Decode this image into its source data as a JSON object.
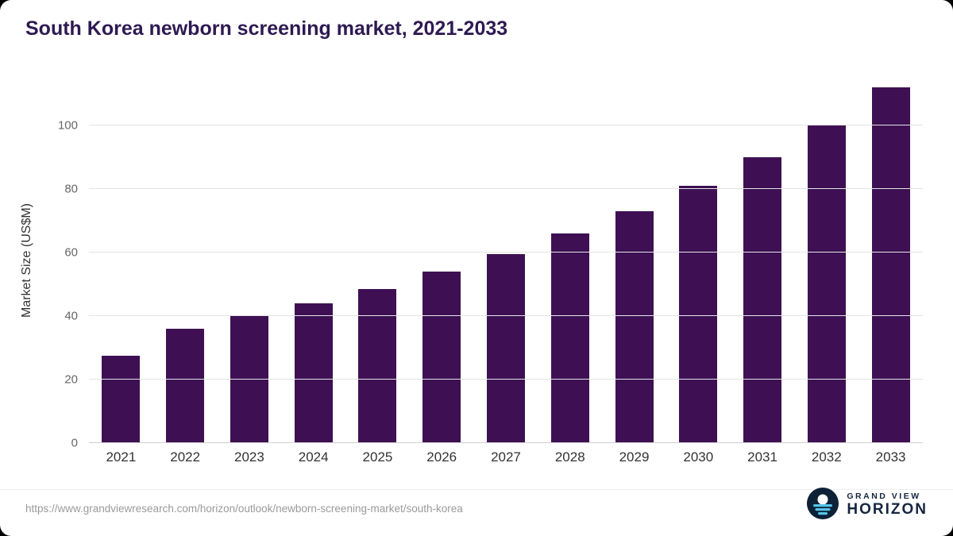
{
  "page": {
    "title": "South Korea newborn screening market, 2021-2033",
    "source_url": "https://www.grandviewresearch.com/horizon/outlook/newborn-screening-market/south-korea",
    "logo": {
      "line1": "GRAND VIEW",
      "line2": "HORIZON"
    }
  },
  "colors": {
    "bar": "#3e1053",
    "title": "#2e1a52",
    "gridline": "#e4e4e4",
    "axis_text": "#666666",
    "category_text": "#333333",
    "logo_navy": "#16253f",
    "logo_cyan": "#55c3e8"
  },
  "chart_data": {
    "type": "bar",
    "title": "South Korea newborn screening market, 2021-2033",
    "categories": [
      "2021",
      "2022",
      "2023",
      "2024",
      "2025",
      "2026",
      "2027",
      "2028",
      "2029",
      "2030",
      "2031",
      "2032",
      "2033"
    ],
    "values": [
      27.5,
      36,
      40,
      44,
      48.5,
      54,
      59.5,
      66,
      73,
      81,
      90,
      100,
      112
    ],
    "xlabel": "",
    "ylabel": "Market Size (US$M)",
    "ylim": [
      0,
      115
    ],
    "yticks": [
      0,
      20,
      40,
      60,
      80,
      100
    ],
    "grid": true,
    "legend": false,
    "bar_color": "#3e1053"
  }
}
